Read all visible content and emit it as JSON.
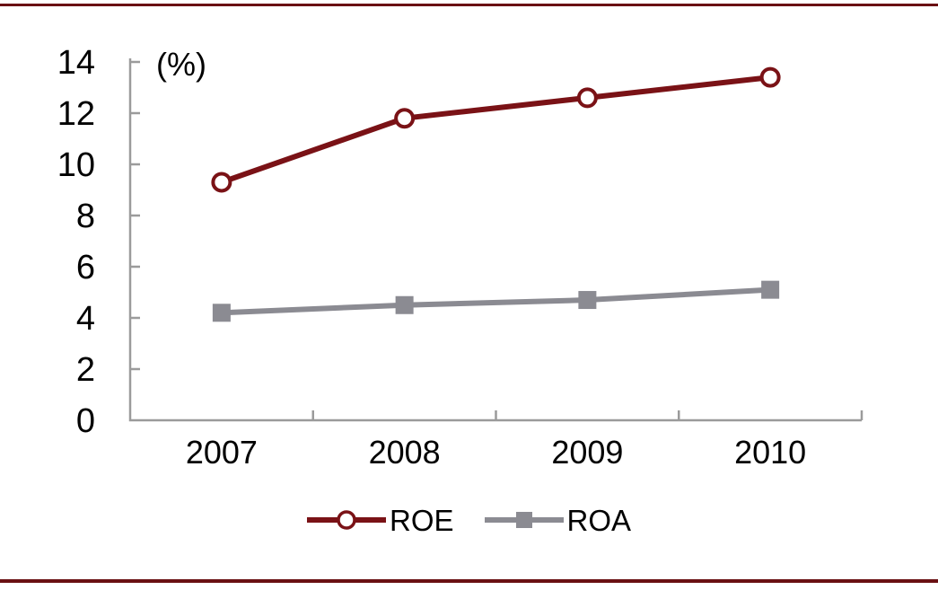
{
  "chart_data": {
    "type": "line",
    "title": "",
    "unit_label": "(%)",
    "categories": [
      "2007",
      "2008",
      "2009",
      "2010"
    ],
    "series": [
      {
        "name": "ROE",
        "values": [
          9.3,
          11.8,
          12.6,
          13.4
        ],
        "color": "#7a1216",
        "marker": "open-circle"
      },
      {
        "name": "ROA",
        "values": [
          4.2,
          4.5,
          4.7,
          5.1
        ],
        "color": "#8b8b92",
        "marker": "filled-square"
      }
    ],
    "ylim": [
      0,
      14
    ],
    "yticks": [
      0,
      2,
      4,
      6,
      8,
      10,
      12,
      14
    ],
    "xlabel": "",
    "ylabel": "",
    "grid": false,
    "legend_position": "bottom-center",
    "axis_color": "#9b9b9b",
    "text_color": "#000000"
  },
  "page": {
    "top_rule_color": "#6a1013",
    "bottom_rule_color": "#6a1013"
  }
}
